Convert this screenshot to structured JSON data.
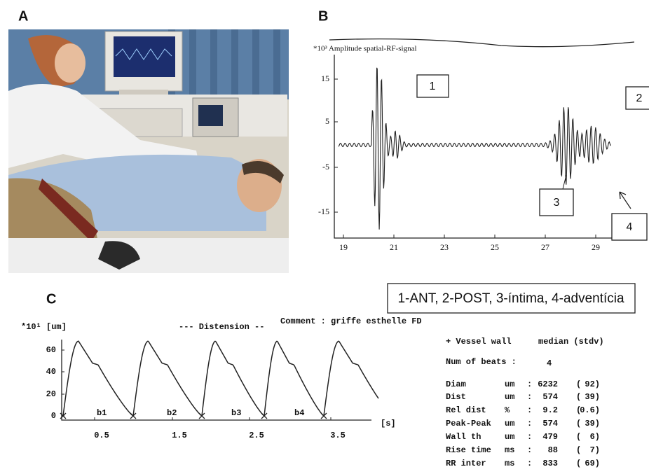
{
  "panel_a": {
    "label": "A"
  },
  "panel_b": {
    "label": "B",
    "y_axis_label": "*10³ Amplitude spatial-RF-signal",
    "y_ticks": [
      "15",
      "5",
      "-5",
      "-15"
    ],
    "x_ticks": [
      "19",
      "21",
      "23",
      "25",
      "27",
      "29"
    ],
    "markers": [
      "1",
      "2",
      "3",
      "4"
    ]
  },
  "legend": "1-ANT, 2-POST, 3-íntima, 4-adventícia",
  "panel_c": {
    "label": "C",
    "y_axis_label": "*10¹ [um]",
    "title": "--- Distension --",
    "comment": "Comment : griffe esthelle FD",
    "y_ticks": [
      "60",
      "40",
      "20",
      "0"
    ],
    "x_ticks": [
      "0.5",
      "1.5",
      "2.5",
      "3.5"
    ],
    "x_unit": "[s]",
    "beats": [
      "b1",
      "b2",
      "b3",
      "b4"
    ]
  },
  "table": {
    "title": "+ Vessel wall",
    "header": "median (stdv)",
    "beats_label": "Num of beats :",
    "beats_value": "4",
    "rows": [
      [
        "Diam",
        "um",
        ":",
        "6232",
        "(",
        "92)"
      ],
      [
        "Dist",
        "um",
        ":",
        "574",
        "(",
        "39)"
      ],
      [
        "Rel dist",
        "%",
        ":",
        "9.2",
        "(",
        "0.6)"
      ],
      [
        "Peak-Peak",
        "um",
        ":",
        "574",
        "(",
        "39)"
      ],
      [
        "Wall th",
        "um",
        ":",
        "479",
        "(",
        "6)"
      ],
      [
        "Rise time",
        "ms",
        ":",
        "88",
        "(",
        "7)"
      ],
      [
        "RR inter",
        "ms",
        ":",
        "833",
        "(",
        "69)"
      ]
    ]
  }
}
